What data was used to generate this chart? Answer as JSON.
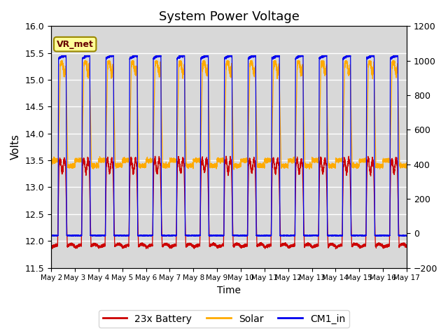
{
  "title": "System Power Voltage",
  "xlabel": "Time",
  "ylabel": "Volts",
  "ylim_left": [
    11.5,
    16.0
  ],
  "ylim_right": [
    -200,
    1200
  ],
  "yticks_left": [
    11.5,
    12.0,
    12.5,
    13.0,
    13.5,
    14.0,
    14.5,
    15.0,
    15.5,
    16.0
  ],
  "yticks_right": [
    -200,
    0,
    200,
    400,
    600,
    800,
    1000,
    1200
  ],
  "xtick_labels": [
    "May 2",
    "May 3",
    "May 4",
    "May 5",
    "May 6",
    "May 7",
    "May 8",
    "May 9",
    "May 10",
    "May 11",
    "May 12",
    "May 13",
    "May 14",
    "May 15",
    "May 16",
    "May 17"
  ],
  "colors": {
    "battery": "#cc0000",
    "solar": "#ffaa00",
    "cm1": "#0000ee"
  },
  "legend_labels": [
    "23x Battery",
    "Solar",
    "CM1_in"
  ],
  "annotation_text": "VR_met",
  "annotation_box_color": "#ffff99",
  "annotation_box_edge": "#998800",
  "annotation_text_color": "#660000",
  "background_color": "#d8d8d8",
  "grid_color": "#ffffff",
  "n_days": 15,
  "n_pts": 500
}
